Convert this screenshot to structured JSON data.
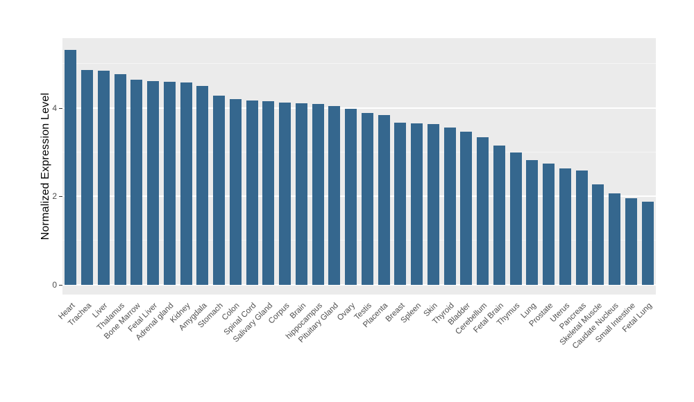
{
  "chart_data": {
    "type": "bar",
    "title": "",
    "xlabel": "",
    "ylabel": "Normalized Expression Level",
    "ylim": [
      0,
      5.5
    ],
    "yticks_major": [
      0,
      2,
      4
    ],
    "yticks_minor": [
      1,
      3,
      5
    ],
    "grid": "on",
    "legend": "none",
    "bar_color": "#35678e",
    "panel_bg": "#ebebeb",
    "major_grid_color": "#ffffff",
    "minor_grid_color": "#f5f5f5",
    "categories": [
      "Heart",
      "Trachea",
      "Liver",
      "Thalamus",
      "Bone Marrow",
      "Fetal Liver",
      "Adrenal gland",
      "Kidney",
      "Amygdala",
      "Stomach",
      "Colon",
      "Spinal Cord",
      "Salivary Gland",
      "Corpus",
      "Brain",
      "hippocampus",
      "Pituitary Gland",
      "Ovary",
      "Testis",
      "Placenta",
      "Breast",
      "Spleen",
      "Skin",
      "Thyroid",
      "Bladder",
      "Cerebellum",
      "Fetal Brain",
      "Thymus",
      "Lung",
      "Prostate",
      "Uterus",
      "Pancreas",
      "Skeletal Muscle",
      "Caudate Nucleus",
      "Small Intestine",
      "Fetal Lung"
    ],
    "values": [
      5.32,
      4.86,
      4.85,
      4.77,
      4.64,
      4.61,
      4.6,
      4.58,
      4.5,
      4.28,
      4.2,
      4.17,
      4.16,
      4.13,
      4.11,
      4.09,
      4.05,
      3.98,
      3.89,
      3.84,
      3.67,
      3.65,
      3.64,
      3.56,
      3.47,
      3.34,
      3.15,
      3.0,
      2.82,
      2.74,
      2.63,
      2.59,
      2.27,
      2.07,
      1.96,
      1.88
    ]
  }
}
